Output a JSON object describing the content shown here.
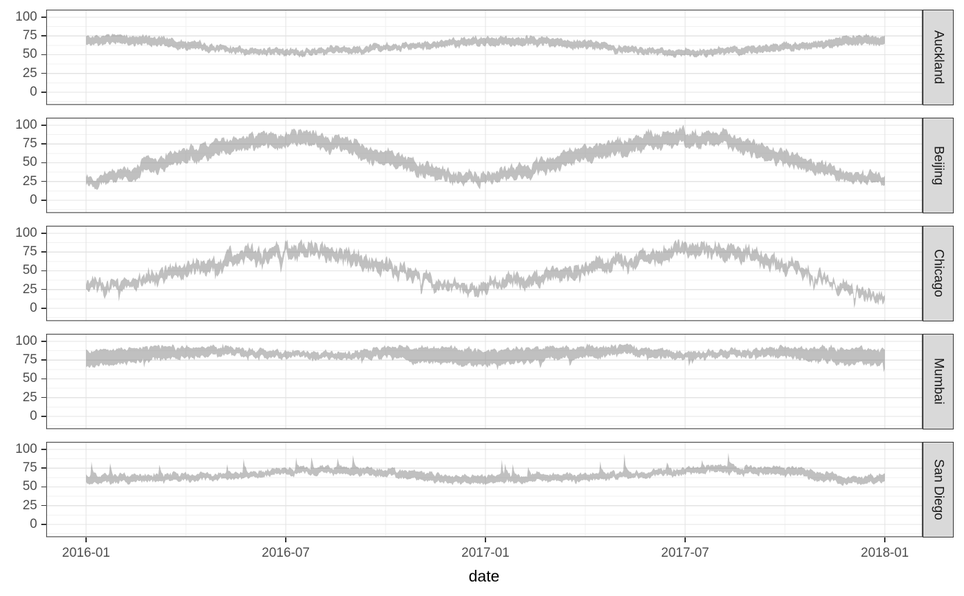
{
  "chart_data": {
    "type": "area",
    "subtype": "ribbon-min-max-daily",
    "title": "",
    "xlabel": "date",
    "ylabel": "",
    "ylim": [
      0,
      100
    ],
    "grid": true,
    "legend": "none",
    "facet_strip_side": "right",
    "y_ticks": [
      100,
      75,
      50,
      25,
      0
    ],
    "y_minor": [
      87.5,
      62.5,
      37.5,
      12.5,
      -12.5
    ],
    "x_tick_labels": [
      "2016-01",
      "2016-07",
      "2017-01",
      "2017-07",
      "2018-01"
    ],
    "x_tick_months": [
      0,
      6,
      12,
      18,
      24
    ],
    "x_minor_months": [
      3,
      9,
      15,
      21
    ],
    "months": [
      "2016-01",
      "2016-02",
      "2016-03",
      "2016-04",
      "2016-05",
      "2016-06",
      "2016-07",
      "2016-08",
      "2016-09",
      "2016-10",
      "2016-11",
      "2016-12",
      "2017-01",
      "2017-02",
      "2017-03",
      "2017-04",
      "2017-05",
      "2017-06",
      "2017-07",
      "2017-08",
      "2017-09",
      "2017-10",
      "2017-11",
      "2017-12",
      "2018-01"
    ],
    "facets": [
      {
        "name": "Auckland",
        "low": [
          63,
          65,
          63,
          59,
          55,
          52,
          49,
          50,
          52,
          55,
          58,
          61,
          62,
          63,
          62,
          58,
          54,
          50,
          48,
          50,
          52,
          55,
          59,
          64,
          64
        ],
        "high": [
          74,
          76,
          74,
          69,
          63,
          59,
          57,
          58,
          60,
          63,
          66,
          70,
          72,
          73,
          72,
          68,
          62,
          58,
          56,
          58,
          61,
          64,
          68,
          76,
          75
        ],
        "noise": 3.5,
        "seed": 11,
        "spike": null
      },
      {
        "name": "Beijing",
        "low": [
          22,
          26,
          38,
          50,
          60,
          68,
          73,
          71,
          61,
          48,
          34,
          24,
          23,
          28,
          39,
          51,
          61,
          69,
          74,
          72,
          62,
          49,
          35,
          24,
          22
        ],
        "high": [
          33,
          40,
          55,
          67,
          78,
          86,
          90,
          88,
          80,
          66,
          50,
          38,
          36,
          43,
          57,
          69,
          80,
          88,
          92,
          89,
          81,
          66,
          50,
          37,
          35
        ],
        "noise": 6,
        "seed": 22,
        "spike": null
      },
      {
        "name": "Chicago",
        "low": [
          22,
          25,
          35,
          42,
          52,
          63,
          69,
          68,
          60,
          48,
          38,
          22,
          25,
          30,
          37,
          46,
          54,
          65,
          70,
          67,
          62,
          50,
          36,
          20,
          5
        ],
        "high": [
          33,
          37,
          48,
          57,
          68,
          79,
          84,
          83,
          76,
          62,
          50,
          32,
          36,
          44,
          50,
          60,
          68,
          80,
          84,
          81,
          77,
          63,
          47,
          30,
          16
        ],
        "noise": 9,
        "seed": 33,
        "spike": {
          "mode": "both-down",
          "prob": 0.02,
          "amp": 12
        }
      },
      {
        "name": "Mumbai",
        "low": [
          67,
          70,
          75,
          79,
          82,
          80,
          78,
          78,
          78,
          79,
          73,
          69,
          68,
          71,
          76,
          79,
          82,
          80,
          78,
          78,
          78,
          79,
          74,
          69,
          68
        ],
        "high": [
          88,
          90,
          92,
          93,
          93,
          89,
          86,
          86,
          87,
          92,
          92,
          90,
          88,
          90,
          92,
          93,
          94,
          90,
          86,
          86,
          87,
          92,
          92,
          90,
          89
        ],
        "noise": 4,
        "seed": 44,
        "spike": {
          "mode": "low-down",
          "prob": 0.03,
          "amp": 8
        }
      },
      {
        "name": "San Diego",
        "low": [
          55,
          56,
          57,
          58,
          60,
          63,
          66,
          68,
          67,
          64,
          59,
          54,
          55,
          56,
          57,
          58,
          61,
          64,
          67,
          69,
          68,
          65,
          60,
          54,
          56
        ],
        "high": [
          65,
          66,
          66,
          67,
          68,
          70,
          74,
          76,
          76,
          73,
          70,
          64,
          65,
          66,
          66,
          67,
          69,
          71,
          75,
          77,
          77,
          75,
          71,
          63,
          66
        ],
        "noise": 3.5,
        "seed": 55,
        "spike": {
          "mode": "high-up",
          "prob": 0.025,
          "amp": 16
        }
      }
    ]
  },
  "style": {
    "ribbon_fill": "#8c8c8c",
    "ribbon_opacity": 0.55,
    "strip_bg": "#d9d9d9",
    "strip_border": "#333333",
    "panel_border": "#4d4d4d",
    "grid_major": "#e3e3e3",
    "grid_minor": "#f1f1f1",
    "tick_color": "#333333",
    "axis_text_color": "#4d4d4d",
    "axis_title_color": "#000000",
    "background": "#ffffff"
  }
}
